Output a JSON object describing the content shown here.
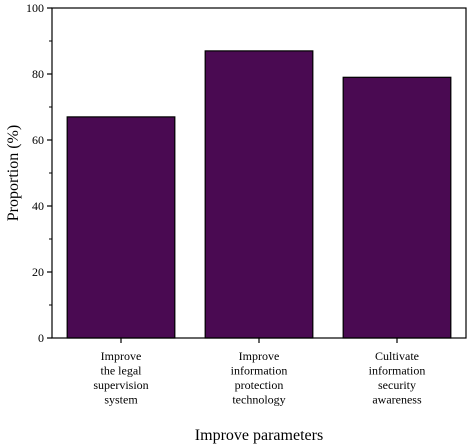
{
  "chart_data": {
    "type": "bar",
    "categories": [
      [
        "Improve",
        "the legal",
        "supervision",
        "system"
      ],
      [
        "Improve",
        "information",
        "protection",
        "technology"
      ],
      [
        "Cultivate",
        "information",
        "security",
        "awareness"
      ]
    ],
    "values": [
      67,
      87,
      79
    ],
    "xlabel": "Improve parameters",
    "ylabel": "Proportion (%)",
    "ylim": [
      0,
      100
    ],
    "yticks": [
      0,
      20,
      40,
      60,
      80,
      100
    ],
    "grid": false,
    "legend": "none",
    "bar_color": "#4a0a52"
  }
}
